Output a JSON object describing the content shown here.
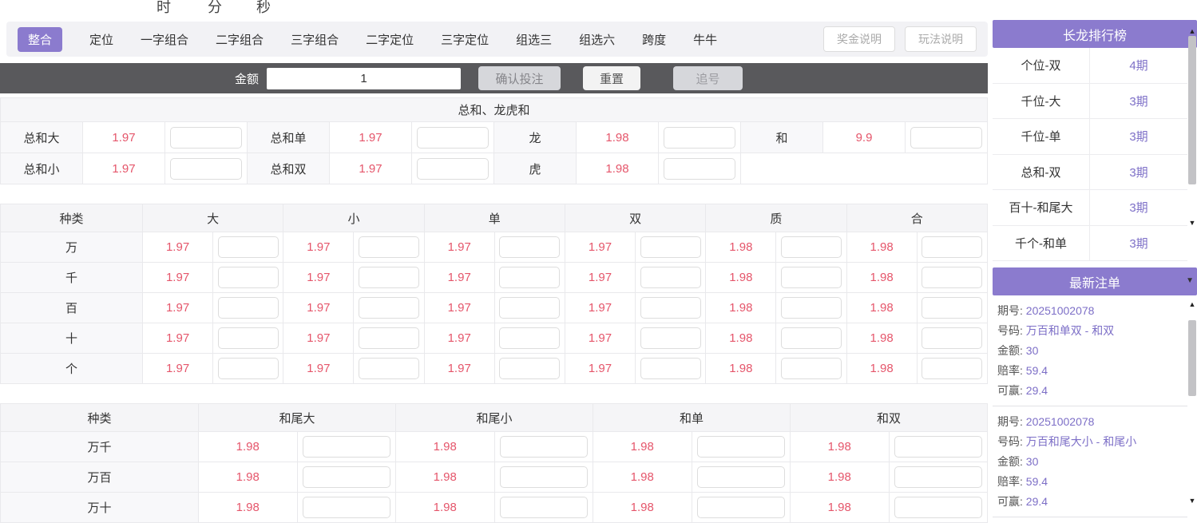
{
  "colors": {
    "accent": "#8b7bce",
    "odds": "#e5566b",
    "purple_value": "#7d6fc7",
    "bar_bg": "#59595c"
  },
  "icons": {
    "collapse": "▼",
    "scroll_up": "▲",
    "scroll_down": "▼"
  },
  "timer": {
    "hour": "时",
    "minute": "分",
    "second": "秒"
  },
  "nav": {
    "tabs": [
      {
        "label": "整合",
        "active": true
      },
      {
        "label": "定位",
        "active": false
      },
      {
        "label": "一字组合",
        "active": false
      },
      {
        "label": "二字组合",
        "active": false
      },
      {
        "label": "三字组合",
        "active": false
      },
      {
        "label": "二字定位",
        "active": false
      },
      {
        "label": "三字定位",
        "active": false
      },
      {
        "label": "组选三",
        "active": false
      },
      {
        "label": "组选六",
        "active": false
      },
      {
        "label": "跨度",
        "active": false
      },
      {
        "label": "牛牛",
        "active": false
      }
    ],
    "help": {
      "bonus": "奖金说明",
      "rules": "玩法说明"
    }
  },
  "bet_bar": {
    "amount_label": "金额",
    "amount_value": "1",
    "buttons": {
      "confirm": "确认投注",
      "reset": "重置",
      "chase": "追号"
    }
  },
  "sum_table": {
    "title": "总和、龙虎和",
    "rows": [
      [
        {
          "label": "总和大",
          "odds": "1.97"
        },
        {
          "label": "总和单",
          "odds": "1.97"
        },
        {
          "label": "龙",
          "odds": "1.98"
        },
        {
          "label": "和",
          "odds": "9.9"
        }
      ],
      [
        {
          "label": "总和小",
          "odds": "1.97"
        },
        {
          "label": "总和双",
          "odds": "1.97"
        },
        {
          "label": "虎",
          "odds": "1.98"
        },
        null
      ]
    ]
  },
  "pos_table": {
    "kind_header": "种类",
    "columns": [
      "大",
      "小",
      "单",
      "双",
      "质",
      "合"
    ],
    "rows": [
      {
        "kind": "万",
        "odds": [
          "1.97",
          "1.97",
          "1.97",
          "1.97",
          "1.98",
          "1.98"
        ]
      },
      {
        "kind": "千",
        "odds": [
          "1.97",
          "1.97",
          "1.97",
          "1.97",
          "1.98",
          "1.98"
        ]
      },
      {
        "kind": "百",
        "odds": [
          "1.97",
          "1.97",
          "1.97",
          "1.97",
          "1.98",
          "1.98"
        ]
      },
      {
        "kind": "十",
        "odds": [
          "1.97",
          "1.97",
          "1.97",
          "1.97",
          "1.98",
          "1.98"
        ]
      },
      {
        "kind": "个",
        "odds": [
          "1.97",
          "1.97",
          "1.97",
          "1.97",
          "1.98",
          "1.98"
        ]
      }
    ]
  },
  "tail_table": {
    "kind_header": "种类",
    "columns": [
      "和尾大",
      "和尾小",
      "和单",
      "和双"
    ],
    "rows": [
      {
        "kind": "万千",
        "odds": [
          "1.98",
          "1.98",
          "1.98",
          "1.98"
        ]
      },
      {
        "kind": "万百",
        "odds": [
          "1.98",
          "1.98",
          "1.98",
          "1.98"
        ]
      },
      {
        "kind": "万十",
        "odds": [
          "1.98",
          "1.98",
          "1.98",
          "1.98"
        ]
      }
    ]
  },
  "rank_panel": {
    "title": "长龙排行榜",
    "rows": [
      {
        "name": "个位-双",
        "count": "4期"
      },
      {
        "name": "千位-大",
        "count": "3期"
      },
      {
        "name": "千位-单",
        "count": "3期"
      },
      {
        "name": "总和-双",
        "count": "3期"
      },
      {
        "name": "百十-和尾大",
        "count": "3期"
      },
      {
        "name": "千个-和单",
        "count": "3期"
      }
    ]
  },
  "orders_panel": {
    "title": "最新注单",
    "field_labels": {
      "issue": "期号:",
      "number": "号码:",
      "amount": "金额:",
      "odds": "赔率:",
      "win": "可赢:"
    },
    "orders": [
      {
        "issue": "20251002078",
        "number": "万百和单双 - 和双",
        "amount": "30",
        "odds": "59.4",
        "win": "29.4"
      },
      {
        "issue": "20251002078",
        "number": "万百和尾大小 - 和尾小",
        "amount": "30",
        "odds": "59.4",
        "win": "29.4"
      }
    ]
  }
}
